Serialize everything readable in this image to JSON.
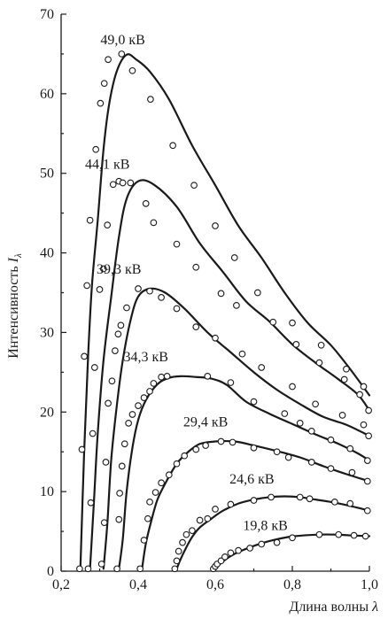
{
  "chart_data": {
    "type": "line",
    "xlabel": "Длина волны",
    "xlabel_symbol": "λ",
    "ylabel": "Интенсивность",
    "ylabel_symbol": "I",
    "ylabel_subscript": "λ",
    "xlim": [
      0.2,
      1.0
    ],
    "ylim": [
      0,
      70
    ],
    "xticks": [
      0.2,
      0.4,
      0.6,
      0.8,
      1.0
    ],
    "xtick_labels": [
      "0,2",
      "0,4",
      "0,6",
      "0,8",
      "1,0"
    ],
    "yticks": [
      0,
      10,
      20,
      30,
      40,
      50,
      60,
      70
    ],
    "ytick_labels": [
      "0",
      "10",
      "20",
      "30",
      "40",
      "50",
      "60",
      "70"
    ],
    "grid": false,
    "legend": "none",
    "series": [
      {
        "name": "49,0 кВ",
        "label_at": [
          0.36,
          66.2
        ],
        "x": [
          0.25,
          0.26,
          0.27,
          0.28,
          0.295,
          0.31,
          0.325,
          0.345,
          0.37,
          0.395,
          0.43,
          0.48,
          0.54,
          0.6,
          0.66,
          0.72,
          0.78,
          0.84,
          0.9,
          0.95,
          1.0
        ],
        "y": [
          0.3,
          15.3,
          27.0,
          35.9,
          44.1,
          53.0,
          58.8,
          62.9,
          64.9,
          64.3,
          62.8,
          59.3,
          53.5,
          48.5,
          43.4,
          39.4,
          35.0,
          31.2,
          28.4,
          25.4,
          22.1
        ],
        "markers": [
          [
            0.248,
            0.3
          ],
          [
            0.254,
            15.3
          ],
          [
            0.26,
            27.0
          ],
          [
            0.267,
            35.9
          ],
          [
            0.275,
            44.1
          ],
          [
            0.29,
            53.0
          ],
          [
            0.302,
            58.8
          ],
          [
            0.312,
            61.3
          ],
          [
            0.322,
            64.3
          ],
          [
            0.357,
            65.0
          ],
          [
            0.385,
            62.9
          ],
          [
            0.432,
            59.3
          ],
          [
            0.49,
            53.5
          ],
          [
            0.545,
            48.5
          ],
          [
            0.6,
            43.4
          ],
          [
            0.65,
            39.4
          ],
          [
            0.71,
            35.0
          ],
          [
            0.8,
            31.2
          ],
          [
            0.875,
            28.4
          ],
          [
            0.94,
            25.4
          ],
          [
            0.985,
            23.2
          ]
        ]
      },
      {
        "name": "44,1 кВ",
        "label_at": [
          0.32,
          50.6
        ],
        "x": [
          0.275,
          0.285,
          0.295,
          0.31,
          0.33,
          0.35,
          0.37,
          0.4,
          0.44,
          0.5,
          0.56,
          0.62,
          0.68,
          0.74,
          0.8,
          0.86,
          0.92,
          0.97,
          1.0
        ],
        "y": [
          0.3,
          8.6,
          17.3,
          26.5,
          34.5,
          42.0,
          46.8,
          49.0,
          48.6,
          45.8,
          41.2,
          37.6,
          33.9,
          31.4,
          28.5,
          26.2,
          24.1,
          22.2,
          20.2
        ],
        "markers": [
          [
            0.27,
            0.3
          ],
          [
            0.277,
            8.6
          ],
          [
            0.282,
            17.3
          ],
          [
            0.287,
            25.6
          ],
          [
            0.3,
            35.4
          ],
          [
            0.31,
            38.0
          ],
          [
            0.32,
            43.5
          ],
          [
            0.335,
            48.6
          ],
          [
            0.35,
            49.0
          ],
          [
            0.36,
            48.8
          ],
          [
            0.38,
            48.8
          ],
          [
            0.42,
            46.2
          ],
          [
            0.44,
            43.8
          ],
          [
            0.5,
            41.1
          ],
          [
            0.55,
            38.2
          ],
          [
            0.615,
            34.9
          ],
          [
            0.655,
            33.4
          ],
          [
            0.75,
            31.3
          ],
          [
            0.81,
            28.5
          ],
          [
            0.87,
            26.2
          ],
          [
            0.935,
            24.1
          ],
          [
            0.975,
            22.2
          ],
          [
            0.998,
            20.2
          ]
        ]
      },
      {
        "name": "39,3 кВ",
        "label_at": [
          0.35,
          37.4
        ],
        "x": [
          0.31,
          0.32,
          0.33,
          0.345,
          0.36,
          0.38,
          0.4,
          0.43,
          0.47,
          0.52,
          0.58,
          0.64,
          0.7,
          0.76,
          0.82,
          0.88,
          0.94,
          1.0
        ],
        "y": [
          0.3,
          6.0,
          14.0,
          21.0,
          26.5,
          31.5,
          34.5,
          35.5,
          35.0,
          33.0,
          30.0,
          27.5,
          25.0,
          22.8,
          21.0,
          19.4,
          18.4,
          17.0
        ],
        "markers": [
          [
            0.305,
            0.9
          ],
          [
            0.312,
            6.1
          ],
          [
            0.316,
            13.7
          ],
          [
            0.322,
            21.1
          ],
          [
            0.332,
            23.9
          ],
          [
            0.34,
            27.7
          ],
          [
            0.348,
            29.8
          ],
          [
            0.355,
            30.9
          ],
          [
            0.37,
            33.1
          ],
          [
            0.4,
            35.5
          ],
          [
            0.43,
            35.2
          ],
          [
            0.46,
            34.4
          ],
          [
            0.5,
            33.0
          ],
          [
            0.55,
            30.7
          ],
          [
            0.6,
            29.3
          ],
          [
            0.67,
            27.3
          ],
          [
            0.72,
            25.6
          ],
          [
            0.8,
            23.2
          ],
          [
            0.86,
            21.0
          ],
          [
            0.93,
            19.6
          ],
          [
            0.985,
            18.4
          ],
          [
            0.998,
            17.0
          ]
        ]
      },
      {
        "name": "34,3 кВ",
        "label_at": [
          0.42,
          26.4
        ],
        "x": [
          0.35,
          0.36,
          0.37,
          0.385,
          0.4,
          0.42,
          0.45,
          0.48,
          0.51,
          0.55,
          0.59,
          0.63,
          0.68,
          0.74,
          0.8,
          0.86,
          0.92,
          0.97,
          1.0
        ],
        "y": [
          0.3,
          4.0,
          10.0,
          15.5,
          19.0,
          21.5,
          23.5,
          24.3,
          24.5,
          24.4,
          24.2,
          23.4,
          21.3,
          19.8,
          18.5,
          17.2,
          16.0,
          14.8,
          13.9
        ],
        "markers": [
          [
            0.345,
            0.3
          ],
          [
            0.35,
            6.5
          ],
          [
            0.352,
            9.8
          ],
          [
            0.358,
            13.2
          ],
          [
            0.365,
            16.0
          ],
          [
            0.375,
            18.6
          ],
          [
            0.385,
            19.7
          ],
          [
            0.4,
            20.8
          ],
          [
            0.415,
            21.8
          ],
          [
            0.43,
            22.6
          ],
          [
            0.44,
            23.6
          ],
          [
            0.46,
            24.4
          ],
          [
            0.475,
            24.5
          ],
          [
            0.58,
            24.5
          ],
          [
            0.64,
            23.7
          ],
          [
            0.7,
            21.3
          ],
          [
            0.78,
            19.8
          ],
          [
            0.82,
            18.6
          ],
          [
            0.85,
            17.6
          ],
          [
            0.9,
            16.5
          ],
          [
            0.95,
            15.4
          ],
          [
            0.995,
            13.9
          ]
        ]
      },
      {
        "name": "29,4 кВ",
        "label_at": [
          0.575,
          18.2
        ],
        "x": [
          0.41,
          0.42,
          0.435,
          0.45,
          0.47,
          0.5,
          0.53,
          0.56,
          0.6,
          0.65,
          0.7,
          0.76,
          0.82,
          0.88,
          0.94,
          1.0
        ],
        "y": [
          0.3,
          3.5,
          6.5,
          9.0,
          11.0,
          13.5,
          15.0,
          16.0,
          16.3,
          16.3,
          15.8,
          15.1,
          14.3,
          13.2,
          12.2,
          11.3
        ],
        "markers": [
          [
            0.405,
            0.3
          ],
          [
            0.415,
            3.9
          ],
          [
            0.425,
            6.6
          ],
          [
            0.43,
            8.7
          ],
          [
            0.445,
            9.9
          ],
          [
            0.46,
            11.1
          ],
          [
            0.48,
            12.1
          ],
          [
            0.5,
            13.5
          ],
          [
            0.52,
            14.5
          ],
          [
            0.55,
            15.3
          ],
          [
            0.575,
            15.8
          ],
          [
            0.615,
            16.3
          ],
          [
            0.645,
            16.2
          ],
          [
            0.7,
            15.5
          ],
          [
            0.76,
            15.0
          ],
          [
            0.79,
            14.3
          ],
          [
            0.85,
            13.7
          ],
          [
            0.9,
            12.9
          ],
          [
            0.955,
            12.4
          ],
          [
            0.995,
            11.3
          ]
        ]
      },
      {
        "name": "24,6 кВ",
        "label_at": [
          0.695,
          11.0
        ],
        "x": [
          0.5,
          0.51,
          0.525,
          0.54,
          0.56,
          0.59,
          0.62,
          0.66,
          0.7,
          0.74,
          0.78,
          0.82,
          0.86,
          0.9,
          0.95,
          1.0
        ],
        "y": [
          0.3,
          1.5,
          3.0,
          4.3,
          5.5,
          6.6,
          7.6,
          8.5,
          9.0,
          9.3,
          9.4,
          9.3,
          9.0,
          8.7,
          8.2,
          7.6
        ],
        "markers": [
          [
            0.495,
            0.3
          ],
          [
            0.5,
            1.3
          ],
          [
            0.505,
            2.5
          ],
          [
            0.515,
            3.6
          ],
          [
            0.525,
            4.6
          ],
          [
            0.54,
            5.1
          ],
          [
            0.56,
            6.4
          ],
          [
            0.58,
            6.6
          ],
          [
            0.6,
            7.8
          ],
          [
            0.64,
            8.4
          ],
          [
            0.7,
            8.9
          ],
          [
            0.745,
            9.3
          ],
          [
            0.82,
            9.3
          ],
          [
            0.845,
            9.1
          ],
          [
            0.91,
            8.7
          ],
          [
            0.95,
            8.5
          ],
          [
            0.995,
            7.6
          ]
        ]
      },
      {
        "name": "19,8 кВ",
        "label_at": [
          0.73,
          5.2
        ],
        "x": [
          0.6,
          0.61,
          0.625,
          0.64,
          0.66,
          0.69,
          0.72,
          0.75,
          0.79,
          0.83,
          0.87,
          0.91,
          0.95,
          1.0
        ],
        "y": [
          0.3,
          0.8,
          1.4,
          1.9,
          2.4,
          3.0,
          3.5,
          3.9,
          4.3,
          4.5,
          4.6,
          4.6,
          4.5,
          4.4
        ],
        "markers": [
          [
            0.595,
            0.3
          ],
          [
            0.6,
            0.6
          ],
          [
            0.605,
            0.9
          ],
          [
            0.615,
            1.3
          ],
          [
            0.625,
            1.8
          ],
          [
            0.64,
            2.3
          ],
          [
            0.66,
            2.6
          ],
          [
            0.69,
            2.9
          ],
          [
            0.72,
            3.4
          ],
          [
            0.76,
            3.6
          ],
          [
            0.8,
            4.2
          ],
          [
            0.87,
            4.6
          ],
          [
            0.92,
            4.6
          ],
          [
            0.96,
            4.5
          ],
          [
            0.99,
            4.4
          ]
        ]
      }
    ]
  }
}
